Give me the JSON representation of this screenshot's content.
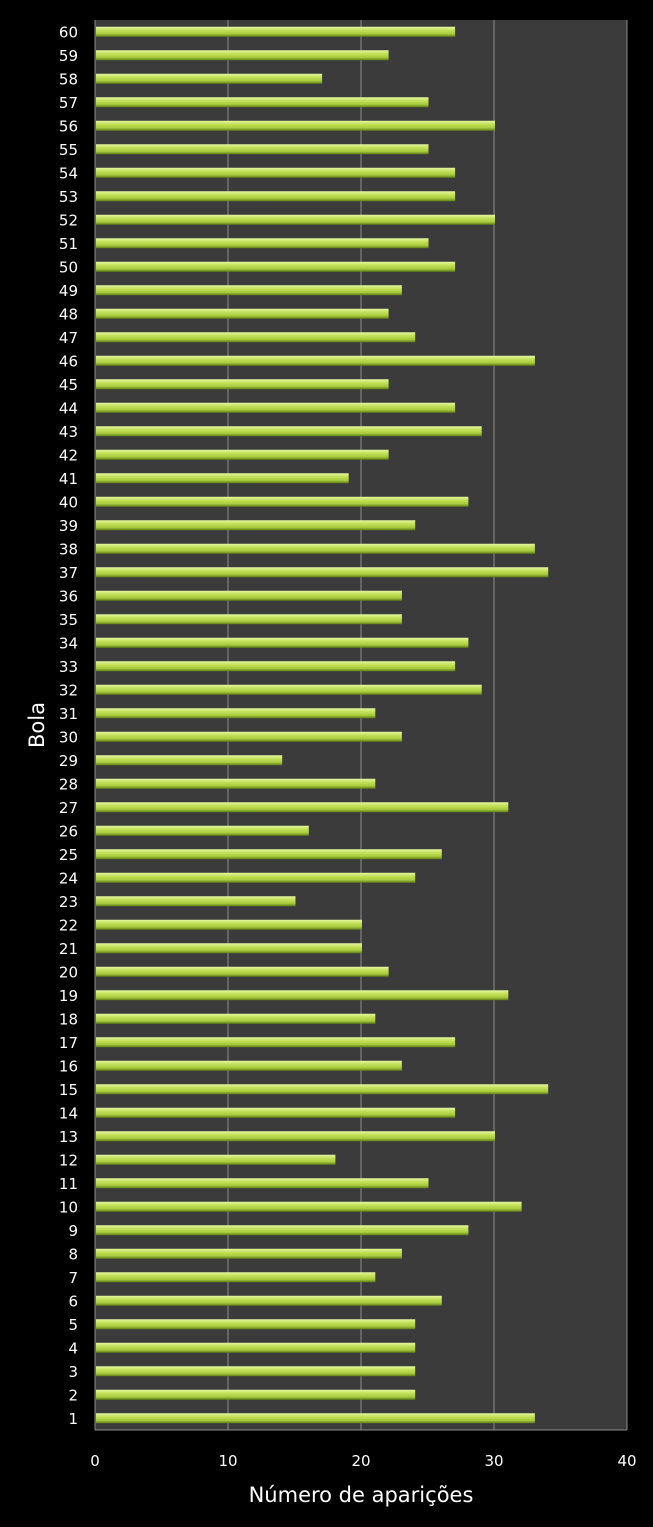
{
  "chart_data": {
    "type": "bar",
    "orientation": "horizontal",
    "title": "",
    "xlabel": "Número de aparições",
    "ylabel": "Bola",
    "xlim": [
      0,
      40
    ],
    "xticks": [
      "0",
      "10",
      "20",
      "30",
      "40"
    ],
    "grid": "vertical",
    "legend": "none",
    "colors": {
      "background": "#000000",
      "plot_area": "#3b3b3b",
      "bar": "#b5d84a",
      "bar_highlight": "#e2f59a",
      "bar_shadow": "#6b8a1e",
      "grid": "#8c8c8c"
    },
    "categories": [
      "1",
      "2",
      "3",
      "4",
      "5",
      "6",
      "7",
      "8",
      "9",
      "10",
      "11",
      "12",
      "13",
      "14",
      "15",
      "16",
      "17",
      "18",
      "19",
      "20",
      "21",
      "22",
      "23",
      "24",
      "25",
      "26",
      "27",
      "28",
      "29",
      "30",
      "31",
      "32",
      "33",
      "34",
      "35",
      "36",
      "37",
      "38",
      "39",
      "40",
      "41",
      "42",
      "43",
      "44",
      "45",
      "46",
      "47",
      "48",
      "49",
      "50",
      "51",
      "52",
      "53",
      "54",
      "55",
      "56",
      "57",
      "58",
      "59",
      "60"
    ],
    "values": [
      33,
      24,
      24,
      24,
      24,
      26,
      21,
      23,
      28,
      32,
      25,
      18,
      30,
      27,
      34,
      23,
      27,
      21,
      31,
      22,
      20,
      20,
      15,
      24,
      26,
      16,
      31,
      21,
      14,
      23,
      21,
      29,
      27,
      28,
      23,
      23,
      34,
      33,
      24,
      28,
      19,
      22,
      29,
      27,
      22,
      33,
      24,
      22,
      23,
      27,
      25,
      30,
      27,
      27,
      25,
      30,
      25,
      17,
      22,
      27
    ]
  }
}
